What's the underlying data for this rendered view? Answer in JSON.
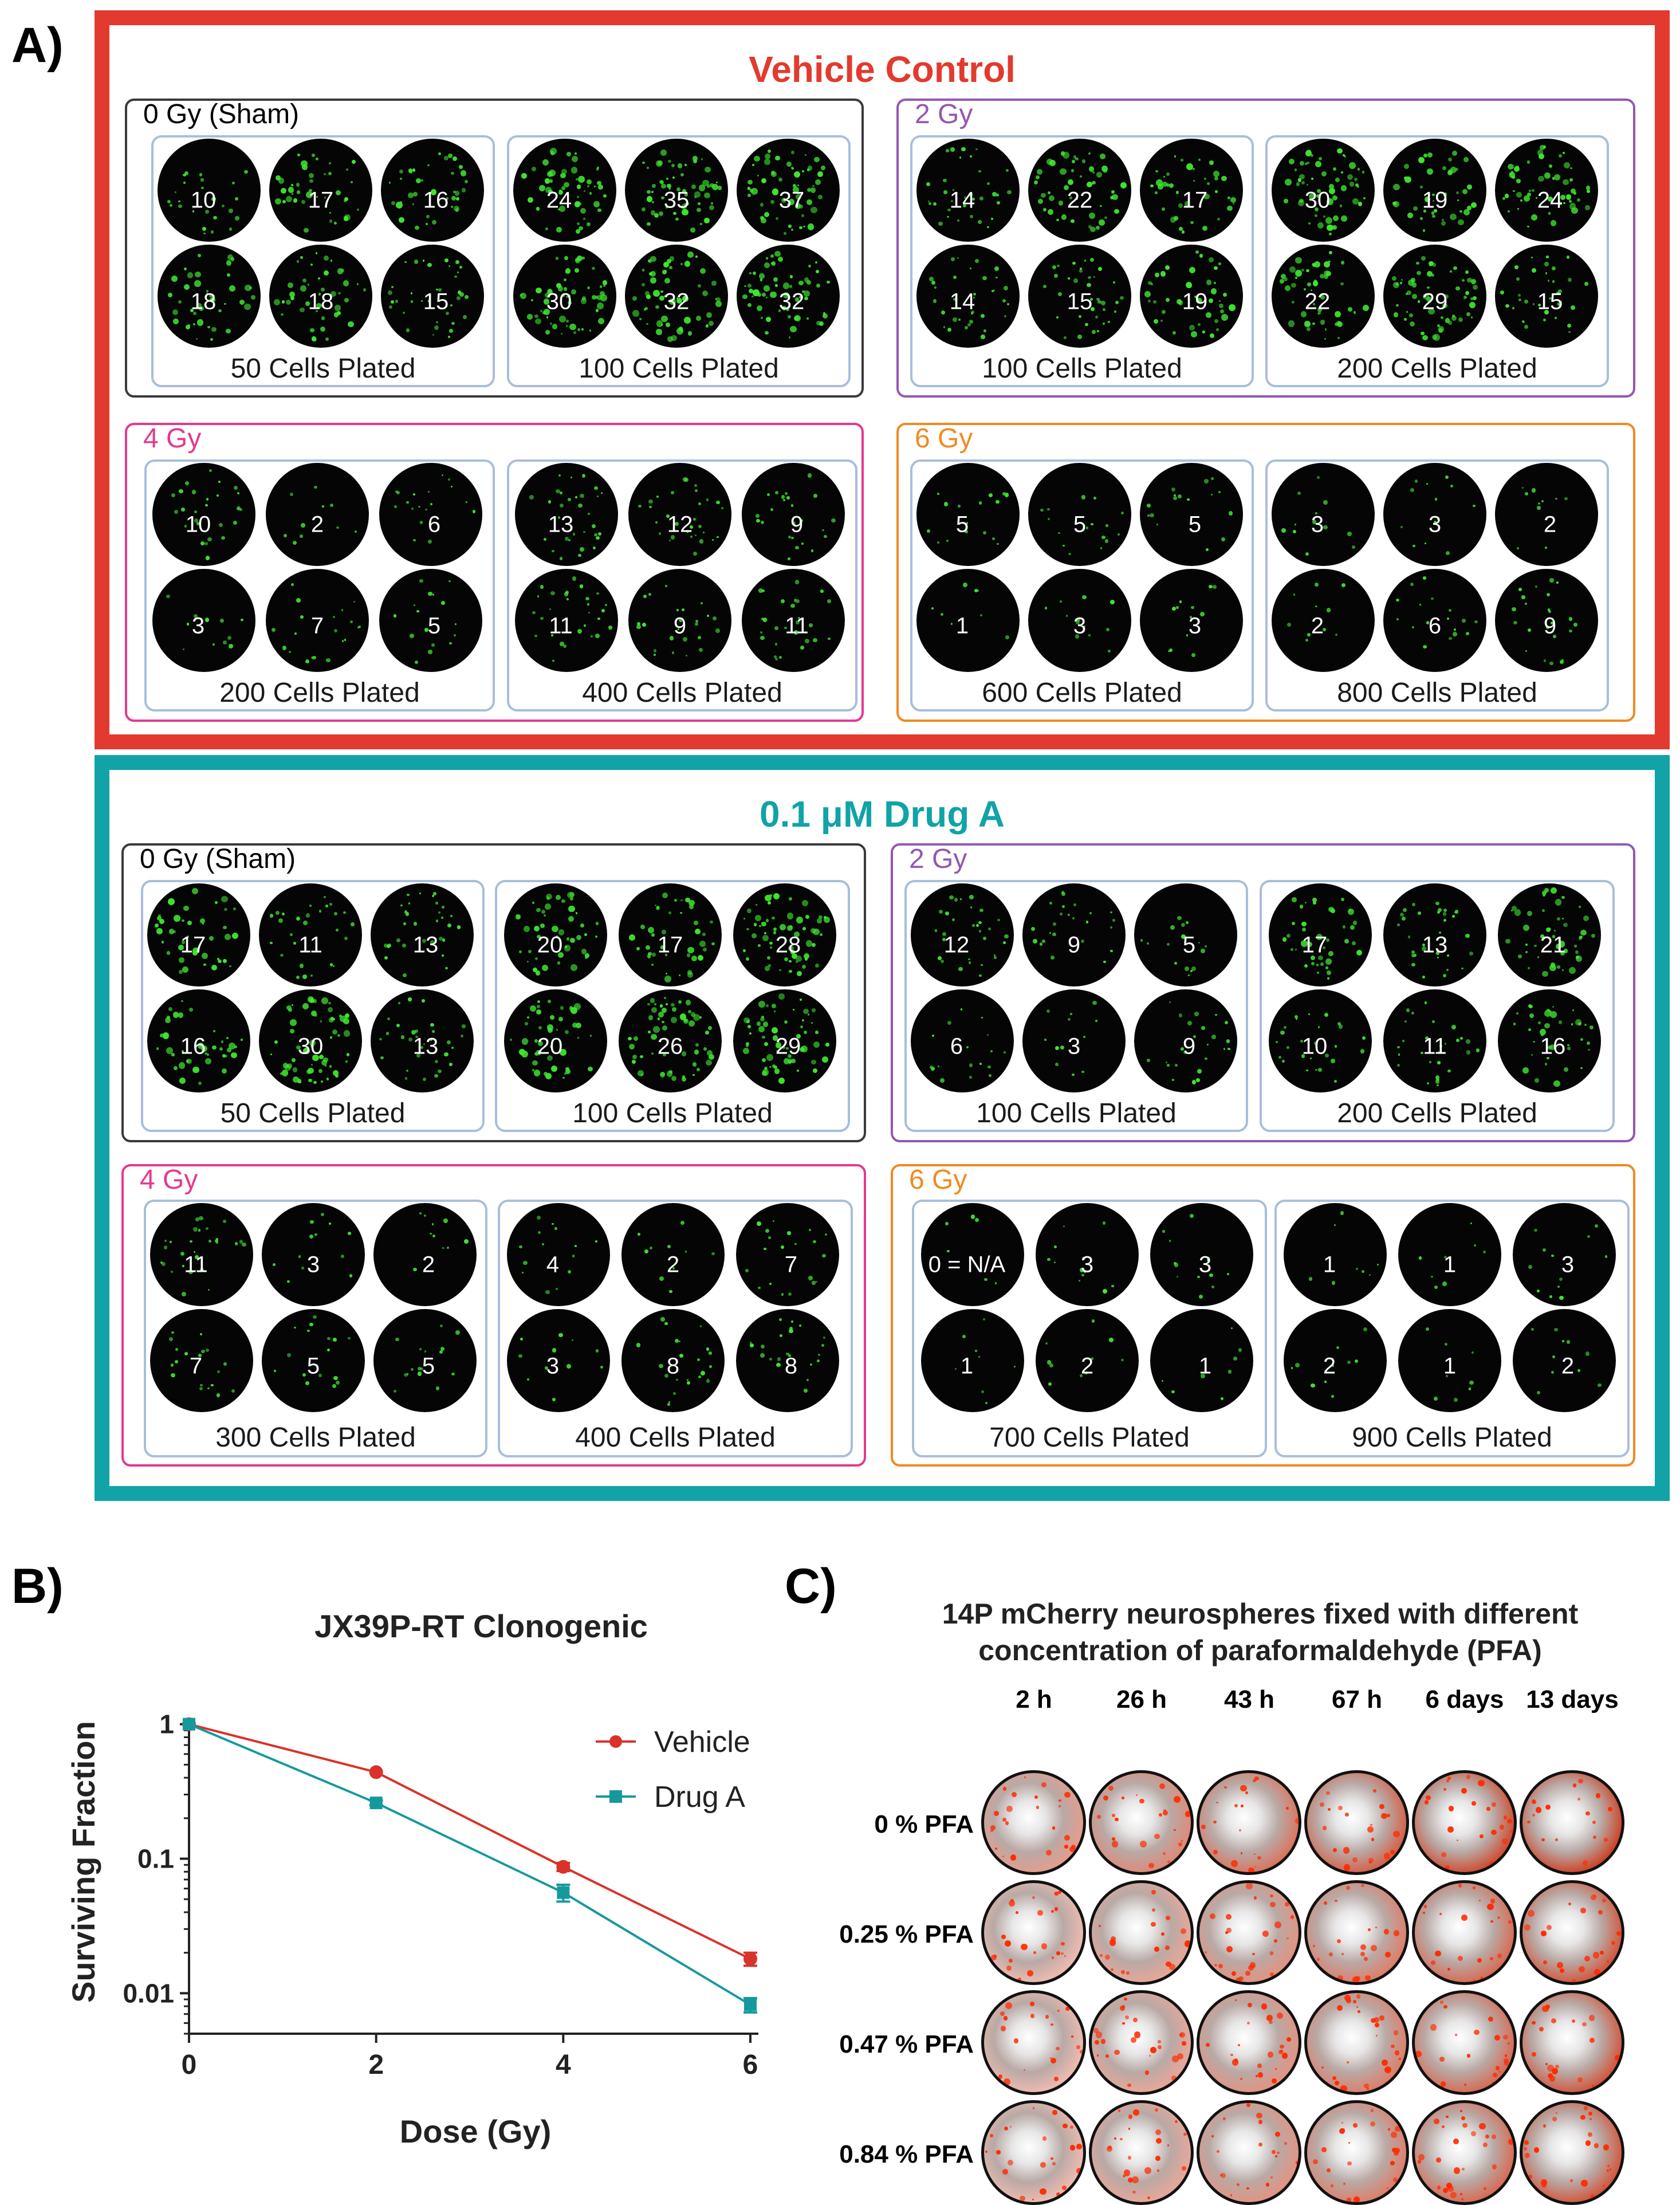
{
  "panels": {
    "a": "A)",
    "b": "B)",
    "c": "C)"
  },
  "panel_a": {
    "groups": [
      {
        "title": "Vehicle Control",
        "doses": [
          {
            "label": "0 Gy (Sham)",
            "plates": [
              {
                "label": "50 Cells Plated",
                "counts": [
                  "10",
                  "17",
                  "16",
                  "18",
                  "18",
                  "15"
                ]
              },
              {
                "label": "100 Cells Plated",
                "counts": [
                  "24",
                  "35",
                  "37",
                  "30",
                  "32",
                  "32"
                ]
              }
            ]
          },
          {
            "label": "2 Gy",
            "plates": [
              {
                "label": "100 Cells Plated",
                "counts": [
                  "14",
                  "22",
                  "17",
                  "14",
                  "15",
                  "19"
                ]
              },
              {
                "label": "200 Cells Plated",
                "counts": [
                  "30",
                  "19",
                  "24",
                  "22",
                  "29",
                  "15"
                ]
              }
            ]
          },
          {
            "label": "4 Gy",
            "plates": [
              {
                "label": "200 Cells Plated",
                "counts": [
                  "10",
                  "2",
                  "6",
                  "3",
                  "7",
                  "5"
                ]
              },
              {
                "label": "400 Cells Plated",
                "counts": [
                  "13",
                  "12",
                  "9",
                  "11",
                  "9",
                  "11"
                ]
              }
            ]
          },
          {
            "label": "6 Gy",
            "plates": [
              {
                "label": "600 Cells Plated",
                "counts": [
                  "5",
                  "5",
                  "5",
                  "1",
                  "3",
                  "3"
                ]
              },
              {
                "label": "800 Cells Plated",
                "counts": [
                  "3",
                  "3",
                  "2",
                  "2",
                  "6",
                  "9"
                ]
              }
            ]
          }
        ]
      },
      {
        "title": "0.1 μM Drug A",
        "doses": [
          {
            "label": "0 Gy (Sham)",
            "plates": [
              {
                "label": "50 Cells Plated",
                "counts": [
                  "17",
                  "11",
                  "13",
                  "16",
                  "30",
                  "13"
                ]
              },
              {
                "label": "100 Cells Plated",
                "counts": [
                  "20",
                  "17",
                  "28",
                  "20",
                  "26",
                  "29"
                ]
              }
            ]
          },
          {
            "label": "2 Gy",
            "plates": [
              {
                "label": "100 Cells Plated",
                "counts": [
                  "12",
                  "9",
                  "5",
                  "6",
                  "3",
                  "9"
                ]
              },
              {
                "label": "200 Cells Plated",
                "counts": [
                  "17",
                  "13",
                  "21",
                  "10",
                  "11",
                  "16"
                ]
              }
            ]
          },
          {
            "label": "4 Gy",
            "plates": [
              {
                "label": "300 Cells Plated",
                "counts": [
                  "11",
                  "3",
                  "2",
                  "7",
                  "5",
                  "5"
                ]
              },
              {
                "label": "400 Cells Plated",
                "counts": [
                  "4",
                  "2",
                  "7",
                  "3",
                  "8",
                  "8"
                ]
              }
            ]
          },
          {
            "label": "6 Gy",
            "plates": [
              {
                "label": "700 Cells Plated",
                "counts": [
                  "0 = N/A",
                  "3",
                  "3",
                  "1",
                  "2",
                  "1"
                ]
              },
              {
                "label": "900 Cells Plated",
                "counts": [
                  "1",
                  "1",
                  "3",
                  "2",
                  "1",
                  "2"
                ]
              }
            ]
          }
        ]
      }
    ]
  },
  "chart_data": {
    "type": "line",
    "title": "JX39P-RT Clonogenic",
    "xlabel": "Dose (Gy)",
    "ylabel": "Surviving Fraction",
    "yscale": "log",
    "xlim": [
      0,
      6
    ],
    "ylim": [
      0.005,
      1.1
    ],
    "xticks": [
      "0",
      "2",
      "4",
      "6"
    ],
    "yticks": [
      "1",
      "0.1",
      "0.01"
    ],
    "x": [
      0,
      2,
      4,
      6
    ],
    "series": [
      {
        "name": "Vehicle",
        "values": [
          1.0,
          0.44,
          0.087,
          0.018
        ],
        "errors": [
          0,
          0,
          0.006,
          0.002
        ],
        "marker": "circle"
      },
      {
        "name": "Drug A",
        "values": [
          1.0,
          0.26,
          0.056,
          0.0082
        ],
        "errors": [
          0,
          0.01,
          0.008,
          0.001
        ],
        "marker": "square"
      }
    ]
  },
  "panel_c": {
    "title_line1": "14P mCherry neurospheres fixed with different",
    "title_line2": "concentration of paraformaldehyde (PFA)",
    "columns": [
      "2 h",
      "26 h",
      "43 h",
      "67 h",
      "6 days",
      "13 days"
    ],
    "rows": [
      "0 % PFA",
      "0.25 % PFA",
      "0.47 % PFA",
      "0.84 % PFA"
    ]
  },
  "colors": {
    "vehicle_frame": "#e23a2e",
    "drug_frame": "#11a3a8",
    "dose_0gy": "#3a3a3a",
    "dose_2gy": "#9457b1",
    "dose_4gy": "#e23a8e",
    "dose_6gy": "#f08a22",
    "plate_border": "#a7bedd",
    "vehicle_line": "#d9322b",
    "drug_line": "#16999d"
  }
}
